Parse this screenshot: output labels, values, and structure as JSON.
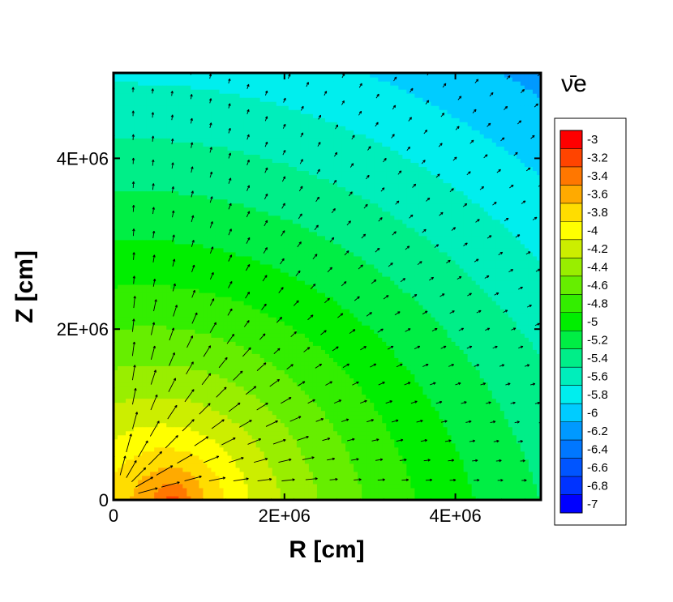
{
  "chart_data": {
    "type": "heatmap",
    "title": "",
    "xlabel": "R [cm]",
    "ylabel": "Z [cm]",
    "xlim": [
      0,
      5000000
    ],
    "ylim": [
      0,
      5000000
    ],
    "x_ticks": [
      {
        "value": 0,
        "label": "0"
      },
      {
        "value": 2000000,
        "label": "2E+06"
      },
      {
        "value": 4000000,
        "label": "4E+06"
      }
    ],
    "y_ticks": [
      {
        "value": 0,
        "label": "0"
      },
      {
        "value": 2000000,
        "label": "2E+06"
      },
      {
        "value": 4000000,
        "label": "4E+06"
      }
    ],
    "colorbar": {
      "title": "ν̄e",
      "levels": [
        {
          "value": -3,
          "label": "-3",
          "color": "#ff0000"
        },
        {
          "value": -3.2,
          "label": "-3.2",
          "color": "#ff4400"
        },
        {
          "value": -3.4,
          "label": "-3.4",
          "color": "#ff7700"
        },
        {
          "value": -3.6,
          "label": "-3.6",
          "color": "#ffaa00"
        },
        {
          "value": -3.8,
          "label": "-3.8",
          "color": "#ffdd00"
        },
        {
          "value": -4,
          "label": "-4",
          "color": "#ffff00"
        },
        {
          "value": -4.2,
          "label": "-4.2",
          "color": "#ccee00"
        },
        {
          "value": -4.4,
          "label": "-4.4",
          "color": "#99ee00"
        },
        {
          "value": -4.6,
          "label": "-4.6",
          "color": "#66ee00"
        },
        {
          "value": -4.8,
          "label": "-4.8",
          "color": "#33ee00"
        },
        {
          "value": -5,
          "label": "-5",
          "color": "#00ee00"
        },
        {
          "value": -5.2,
          "label": "-5.2",
          "color": "#00ee44"
        },
        {
          "value": -5.4,
          "label": "-5.4",
          "color": "#00ee88"
        },
        {
          "value": -5.6,
          "label": "-5.6",
          "color": "#00eebb"
        },
        {
          "value": -5.8,
          "label": "-5.8",
          "color": "#00eeee"
        },
        {
          "value": -6,
          "label": "-6",
          "color": "#00ccff"
        },
        {
          "value": -6.2,
          "label": "-6.2",
          "color": "#0099ff"
        },
        {
          "value": -6.4,
          "label": "-6.4",
          "color": "#0077ff"
        },
        {
          "value": -6.6,
          "label": "-6.6",
          "color": "#0055ff"
        },
        {
          "value": -6.8,
          "label": "-6.8",
          "color": "#0033ff"
        },
        {
          "value": -7,
          "label": "-7",
          "color": "#0000ff"
        }
      ]
    },
    "field_description": "log flux contours of electron antineutrinos peaking near R≈7E+05, Z=0 and decreasing outward, overlaid with radially outward flux vectors",
    "peak": {
      "R": 700000,
      "Z": 0,
      "value": -3
    },
    "vector_field": {
      "direction": "radially outward",
      "strong_region_radius": 2500000
    }
  }
}
